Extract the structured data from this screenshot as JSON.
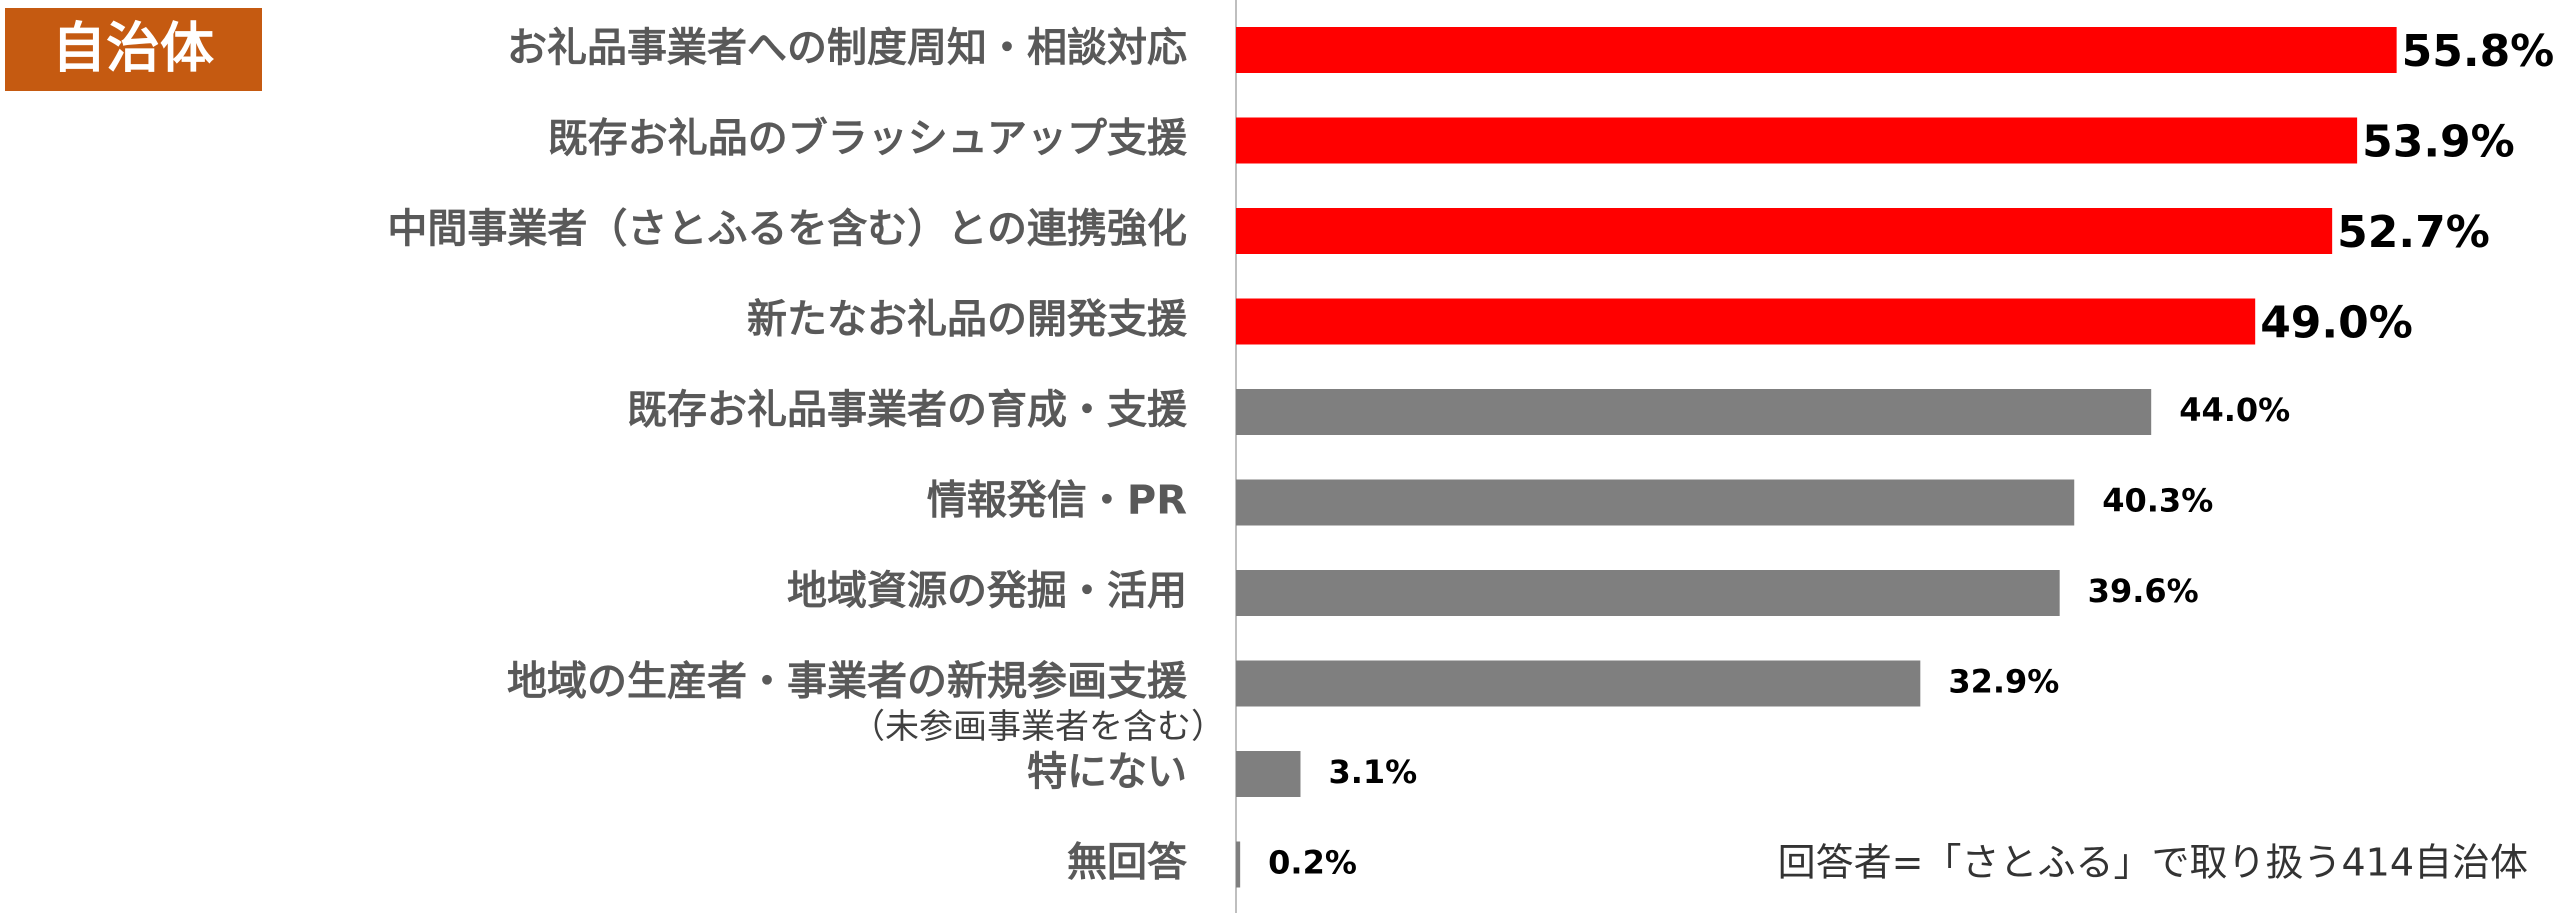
{
  "chart_data": {
    "type": "hbar",
    "badge": "自治体",
    "note": "回答者=「さとふる」で取り扱う414自治体",
    "categories": [
      "お礼品事業者への制度周知・相談対応",
      "既存お礼品のブラッシュアップ支援",
      "中間事業者（さとふるを含む）との連携強化",
      "新たなお礼品の開発支援",
      "既存お礼品事業者の育成・支援",
      "情報発信・PR",
      "地域資源の発掘・活用",
      "地域の生産者・事業者の新規参画支援",
      "特にない",
      "無回答"
    ],
    "category_notes": [
      null,
      null,
      null,
      null,
      null,
      null,
      null,
      "（未参画事業者を含む）",
      null,
      null
    ],
    "values": [
      55.8,
      53.9,
      52.7,
      49.0,
      44.0,
      40.3,
      39.6,
      32.9,
      3.1,
      0.2
    ],
    "value_labels": [
      "55.8%",
      "53.9%",
      "52.7%",
      "49.0%",
      "44.0%",
      "40.3%",
      "39.6%",
      "32.9%",
      "3.1%",
      "0.2%"
    ],
    "colors": [
      "#ff0000",
      "#ff0000",
      "#ff0000",
      "#ff0000",
      "#7f7f7f",
      "#7f7f7f",
      "#7f7f7f",
      "#7f7f7f",
      "#7f7f7f",
      "#7f7f7f"
    ],
    "emphasized": [
      true,
      true,
      true,
      true,
      false,
      false,
      false,
      false,
      false,
      false
    ],
    "xlim": [
      0,
      60
    ]
  }
}
